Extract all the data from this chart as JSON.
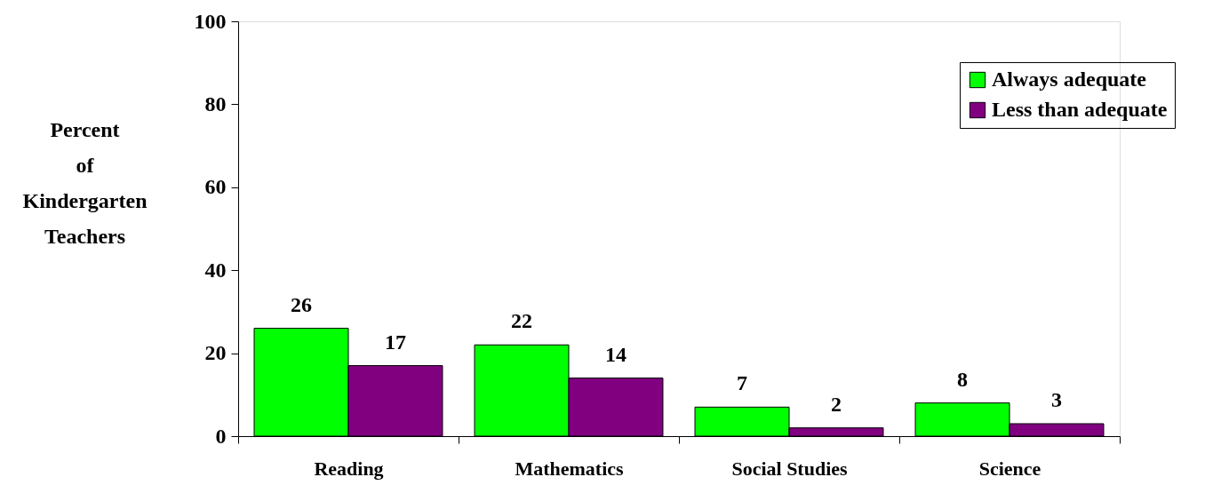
{
  "chart_data": {
    "type": "bar",
    "ylabel": "Percent of Kindergarten Teachers",
    "categories": [
      "Reading",
      "Mathematics",
      "Social Studies",
      "Science"
    ],
    "series": [
      {
        "name": "Always adequate",
        "color": "#00ff00",
        "values": [
          26,
          22,
          7,
          8
        ]
      },
      {
        "name": "Less than adequate",
        "color": "#800080",
        "values": [
          17,
          14,
          2,
          3
        ]
      }
    ],
    "ylim": [
      0,
      100
    ],
    "yticks": [
      0,
      20,
      40,
      60,
      80,
      100
    ],
    "grid": false,
    "legend": "top right",
    "data_labels": true
  }
}
